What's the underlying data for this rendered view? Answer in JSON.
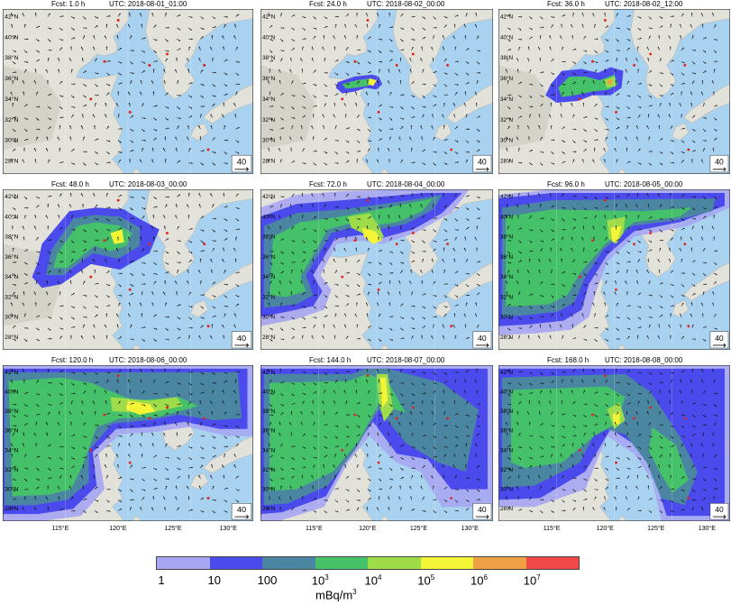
{
  "panels": [
    {
      "fcst": "Fcst:  1.0 h",
      "utc": "UTC: 2018-08-01_01:00",
      "stage": 0
    },
    {
      "fcst": "Fcst:  24.0 h",
      "utc": "UTC: 2018-08-02_00:00",
      "stage": 1
    },
    {
      "fcst": "Fcst:  36.0 h",
      "utc": "UTC: 2018-08-02_12:00",
      "stage": 2
    },
    {
      "fcst": "Fcst:  48.0 h",
      "utc": "UTC: 2018-08-03_00:00",
      "stage": 3
    },
    {
      "fcst": "Fcst:  72.0 h",
      "utc": "UTC: 2018-08-04_00:00",
      "stage": 4
    },
    {
      "fcst": "Fcst:  96.0 h",
      "utc": "UTC: 2018-08-05_00:00",
      "stage": 5
    },
    {
      "fcst": "Fcst:  120.0 h",
      "utc": "UTC: 2018-08-06_00:00",
      "stage": 6
    },
    {
      "fcst": "Fcst:  144.0 h",
      "utc": "UTC: 2018-08-07_00:00",
      "stage": 7
    },
    {
      "fcst": "Fcst:  168.0 h",
      "utc": "UTC: 2018-08-08_00:00",
      "stage": 8
    }
  ],
  "lat_labels": [
    "42°N",
    "40°N",
    "38°N",
    "36°N",
    "34°N",
    "32°N",
    "30°N",
    "28°N"
  ],
  "lon_labels": [
    "115°E",
    "120°E",
    "125°E",
    "130°E"
  ],
  "wind_reference": "40",
  "colorbar": {
    "colors": [
      "#a6a6f2",
      "#4a4aed",
      "#4a86a2",
      "#45c16a",
      "#9fdc4a",
      "#f4f437",
      "#f0a044",
      "#f04848"
    ],
    "labels": [
      {
        "base": "1",
        "exp": ""
      },
      {
        "base": "10",
        "exp": ""
      },
      {
        "base": "100",
        "exp": ""
      },
      {
        "base": "10",
        "exp": "3"
      },
      {
        "base": "10",
        "exp": "4"
      },
      {
        "base": "10",
        "exp": "5"
      },
      {
        "base": "10",
        "exp": "6"
      },
      {
        "base": "10",
        "exp": "7"
      }
    ],
    "unit_base": "mBq/m",
    "unit_exp": "3"
  },
  "colors": {
    "ocean": "#a9d2f0",
    "land": "#e3e2da",
    "site_marker": "#e2231a"
  }
}
